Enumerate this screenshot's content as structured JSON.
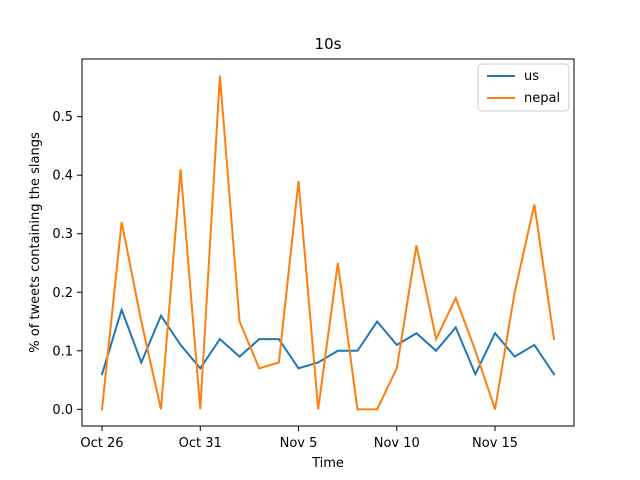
{
  "chart_data": {
    "type": "line",
    "title": "10s",
    "xlabel": "Time",
    "ylabel": "% of tweets containing the slangs",
    "x": [
      "Oct 26",
      "Oct 27",
      "Oct 28",
      "Oct 29",
      "Oct 30",
      "Oct 31",
      "Nov 1",
      "Nov 2",
      "Nov 3",
      "Nov 4",
      "Nov 5",
      "Nov 6",
      "Nov 7",
      "Nov 8",
      "Nov 9",
      "Nov 10",
      "Nov 11",
      "Nov 12",
      "Nov 13",
      "Nov 14",
      "Nov 15",
      "Nov 16",
      "Nov 17",
      "Nov 18"
    ],
    "xticks": [
      "Oct 26",
      "Oct 31",
      "Nov 5",
      "Nov 10",
      "Nov 15"
    ],
    "yticks": [
      "0.0",
      "0.1",
      "0.2",
      "0.3",
      "0.4",
      "0.5"
    ],
    "ylim": [
      -0.0285,
      0.5985
    ],
    "grid": false,
    "legend_position": "top-right",
    "series": [
      {
        "name": "us",
        "color": "#1f77b4",
        "values": [
          0.06,
          0.17,
          0.08,
          0.16,
          0.11,
          0.07,
          0.12,
          0.09,
          0.12,
          0.12,
          0.07,
          0.08,
          0.1,
          0.1,
          0.15,
          0.11,
          0.13,
          0.1,
          0.14,
          0.06,
          0.13,
          0.09,
          0.11,
          0.06
        ]
      },
      {
        "name": "nepal",
        "color": "#ff7f0e",
        "values": [
          0.0,
          0.32,
          0.15,
          0.0,
          0.41,
          0.0,
          0.57,
          0.15,
          0.07,
          0.08,
          0.39,
          0.0,
          0.25,
          0.0,
          0.0,
          0.07,
          0.28,
          0.12,
          0.19,
          0.1,
          0.0,
          0.2,
          0.35,
          0.12
        ]
      }
    ]
  }
}
